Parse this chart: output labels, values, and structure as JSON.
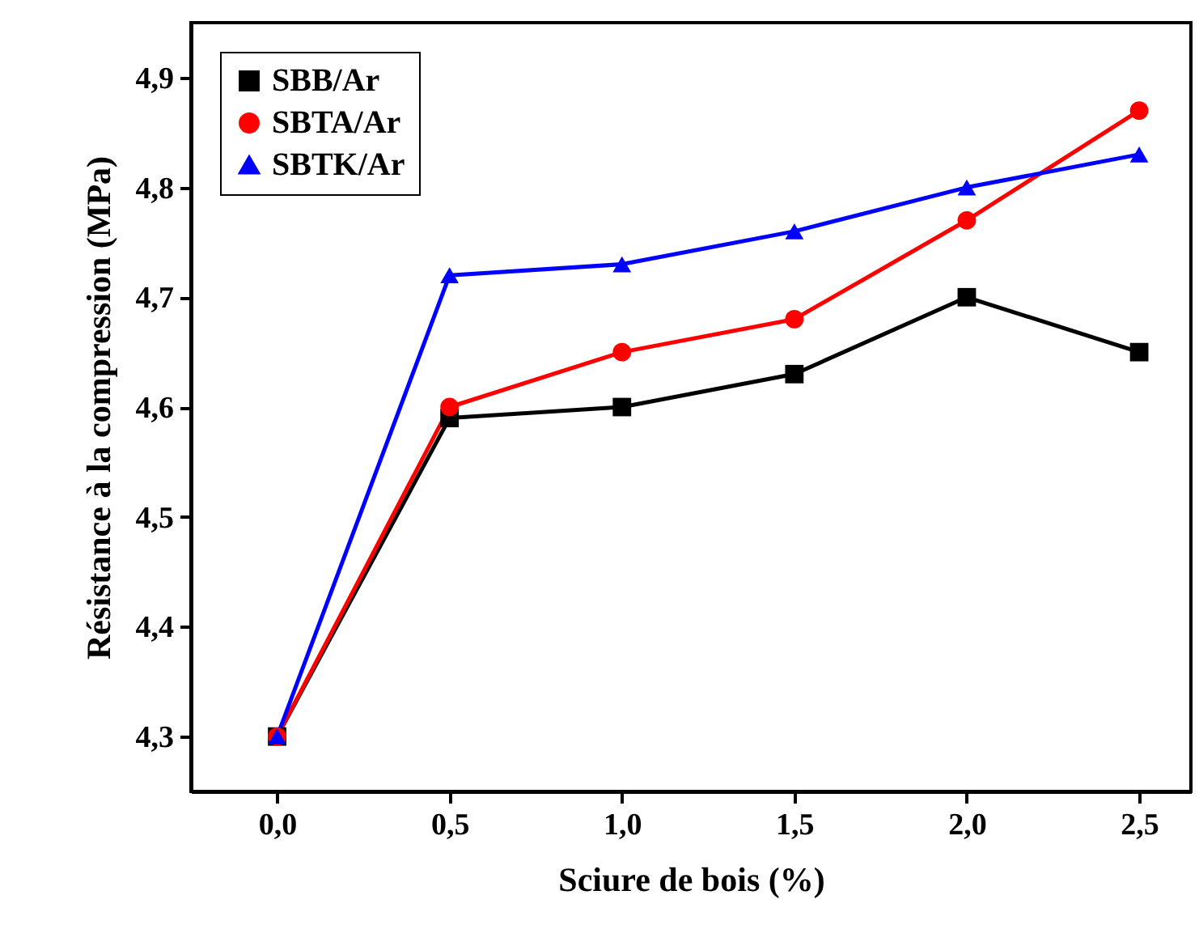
{
  "chart_data": {
    "type": "line",
    "xlabel": "Sciure de bois (%)",
    "ylabel": "Résistance à la compression  (MPa)",
    "x": [
      0,
      0.5,
      1,
      1.5,
      2,
      2.5
    ],
    "xlim": [
      -0.25,
      2.65
    ],
    "xticks": [
      {
        "value": 0,
        "label": "0,0"
      },
      {
        "value": 0.5,
        "label": "0,5"
      },
      {
        "value": 1,
        "label": "1,0"
      },
      {
        "value": 1.5,
        "label": "1,5"
      },
      {
        "value": 2,
        "label": "2,0"
      },
      {
        "value": 2.5,
        "label": "2,5"
      }
    ],
    "ylim": [
      4.25,
      4.95
    ],
    "yticks": [
      {
        "value": 4.3,
        "label": "4,3"
      },
      {
        "value": 4.4,
        "label": "4,4"
      },
      {
        "value": 4.5,
        "label": "4,5"
      },
      {
        "value": 4.6,
        "label": "4,6"
      },
      {
        "value": 4.7,
        "label": "4,7"
      },
      {
        "value": 4.8,
        "label": "4,8"
      },
      {
        "value": 4.9,
        "label": "4,9"
      }
    ],
    "grid": false,
    "legend": "top left",
    "line_style": "solid",
    "series": [
      {
        "name": "SBB/Ar",
        "color": "#000000",
        "marker": "square",
        "values": [
          4.3,
          4.59,
          4.6,
          4.63,
          4.7,
          4.65
        ]
      },
      {
        "name": "SBTA/Ar",
        "color": "#ff0000",
        "marker": "circle",
        "values": [
          4.3,
          4.6,
          4.65,
          4.68,
          4.77,
          4.87
        ]
      },
      {
        "name": "SBTK/Ar",
        "color": "#0000ff",
        "marker": "triangle",
        "values": [
          4.3,
          4.72,
          4.73,
          4.76,
          4.8,
          4.83
        ]
      }
    ]
  }
}
